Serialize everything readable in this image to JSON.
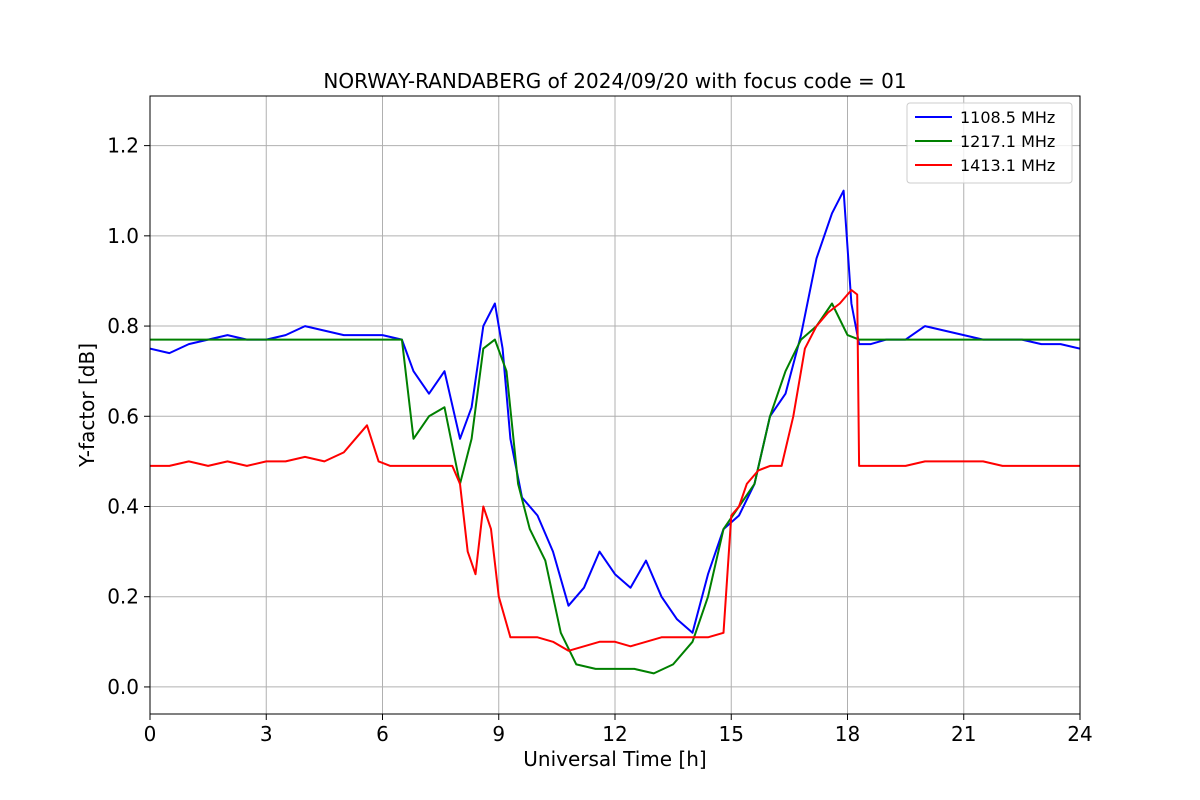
{
  "chart_data": {
    "type": "line",
    "title": "NORWAY-RANDABERG of 2024/09/20 with focus code = 01",
    "xlabel": "Universal Time [h]",
    "ylabel": "Y-factor [dB]",
    "xlim": [
      0,
      24
    ],
    "ylim": [
      -0.06,
      1.31
    ],
    "xticks": [
      "0",
      "3",
      "6",
      "9",
      "12",
      "15",
      "18",
      "21",
      "24"
    ],
    "yticks": [
      "0.0",
      "0.2",
      "0.4",
      "0.6",
      "0.8",
      "1.0",
      "1.2"
    ],
    "grid": true,
    "legend_position": "top-right",
    "series": [
      {
        "name": "1108.5 MHz",
        "color": "#0000ff",
        "x": [
          0.0,
          0.5,
          1.0,
          1.5,
          2.0,
          2.5,
          3.0,
          3.5,
          4.0,
          4.5,
          5.0,
          5.5,
          6.0,
          6.5,
          6.8,
          7.2,
          7.6,
          8.0,
          8.3,
          8.6,
          8.9,
          9.1,
          9.3,
          9.6,
          10.0,
          10.4,
          10.8,
          11.2,
          11.6,
          12.0,
          12.4,
          12.8,
          13.2,
          13.6,
          14.0,
          14.4,
          14.8,
          15.2,
          15.6,
          16.0,
          16.4,
          16.8,
          17.2,
          17.6,
          17.9,
          18.1,
          18.3,
          18.6,
          19.0,
          19.5,
          20.0,
          20.5,
          21.0,
          21.5,
          22.0,
          22.5,
          23.0,
          23.5,
          24.0
        ],
        "y": [
          0.75,
          0.74,
          0.76,
          0.77,
          0.78,
          0.77,
          0.77,
          0.78,
          0.8,
          0.79,
          0.78,
          0.78,
          0.78,
          0.77,
          0.7,
          0.65,
          0.7,
          0.55,
          0.62,
          0.8,
          0.85,
          0.75,
          0.55,
          0.42,
          0.38,
          0.3,
          0.18,
          0.22,
          0.3,
          0.25,
          0.22,
          0.28,
          0.2,
          0.15,
          0.12,
          0.25,
          0.35,
          0.38,
          0.45,
          0.6,
          0.65,
          0.78,
          0.95,
          1.05,
          1.1,
          0.85,
          0.76,
          0.76,
          0.77,
          0.77,
          0.8,
          0.79,
          0.78,
          0.77,
          0.77,
          0.77,
          0.76,
          0.76,
          0.75
        ]
      },
      {
        "name": "1217.1 MHz",
        "color": "#008000",
        "x": [
          0.0,
          0.5,
          1.0,
          1.5,
          2.0,
          2.5,
          3.0,
          3.5,
          4.0,
          4.5,
          5.0,
          5.5,
          6.0,
          6.5,
          6.8,
          7.2,
          7.6,
          8.0,
          8.3,
          8.6,
          8.9,
          9.2,
          9.5,
          9.8,
          10.2,
          10.6,
          11.0,
          11.5,
          12.0,
          12.5,
          13.0,
          13.5,
          14.0,
          14.4,
          14.8,
          15.2,
          15.6,
          16.0,
          16.4,
          16.8,
          17.2,
          17.6,
          18.0,
          18.3,
          18.6,
          19.0,
          19.5,
          20.0,
          20.5,
          21.0,
          21.5,
          22.0,
          22.5,
          23.0,
          23.5,
          24.0
        ],
        "y": [
          0.77,
          0.77,
          0.77,
          0.77,
          0.77,
          0.77,
          0.77,
          0.77,
          0.77,
          0.77,
          0.77,
          0.77,
          0.77,
          0.77,
          0.55,
          0.6,
          0.62,
          0.45,
          0.55,
          0.75,
          0.77,
          0.7,
          0.45,
          0.35,
          0.28,
          0.12,
          0.05,
          0.04,
          0.04,
          0.04,
          0.03,
          0.05,
          0.1,
          0.2,
          0.35,
          0.4,
          0.45,
          0.6,
          0.7,
          0.77,
          0.8,
          0.85,
          0.78,
          0.77,
          0.77,
          0.77,
          0.77,
          0.77,
          0.77,
          0.77,
          0.77,
          0.77,
          0.77,
          0.77,
          0.77,
          0.77
        ]
      },
      {
        "name": "1413.1 MHz",
        "color": "#ff0000",
        "x": [
          0.0,
          0.5,
          1.0,
          1.5,
          2.0,
          2.5,
          3.0,
          3.5,
          4.0,
          4.5,
          5.0,
          5.3,
          5.6,
          5.9,
          6.2,
          6.6,
          7.0,
          7.4,
          7.8,
          8.0,
          8.2,
          8.4,
          8.6,
          8.8,
          9.0,
          9.3,
          9.6,
          10.0,
          10.4,
          10.8,
          11.2,
          11.6,
          12.0,
          12.4,
          12.8,
          13.2,
          13.6,
          14.0,
          14.4,
          14.8,
          15.0,
          15.2,
          15.4,
          15.7,
          16.0,
          16.3,
          16.6,
          16.9,
          17.2,
          17.5,
          17.8,
          18.1,
          18.25,
          18.3,
          18.6,
          19.0,
          19.5,
          20.0,
          20.5,
          21.0,
          21.5,
          22.0,
          22.5,
          23.0,
          23.5,
          24.0
        ],
        "y": [
          0.49,
          0.49,
          0.5,
          0.49,
          0.5,
          0.49,
          0.5,
          0.5,
          0.51,
          0.5,
          0.52,
          0.55,
          0.58,
          0.5,
          0.49,
          0.49,
          0.49,
          0.49,
          0.49,
          0.45,
          0.3,
          0.25,
          0.4,
          0.35,
          0.2,
          0.11,
          0.11,
          0.11,
          0.1,
          0.08,
          0.09,
          0.1,
          0.1,
          0.09,
          0.1,
          0.11,
          0.11,
          0.11,
          0.11,
          0.12,
          0.38,
          0.4,
          0.45,
          0.48,
          0.49,
          0.49,
          0.6,
          0.75,
          0.8,
          0.83,
          0.85,
          0.88,
          0.87,
          0.49,
          0.49,
          0.49,
          0.49,
          0.5,
          0.5,
          0.5,
          0.5,
          0.49,
          0.49,
          0.49,
          0.49,
          0.49
        ]
      }
    ]
  }
}
